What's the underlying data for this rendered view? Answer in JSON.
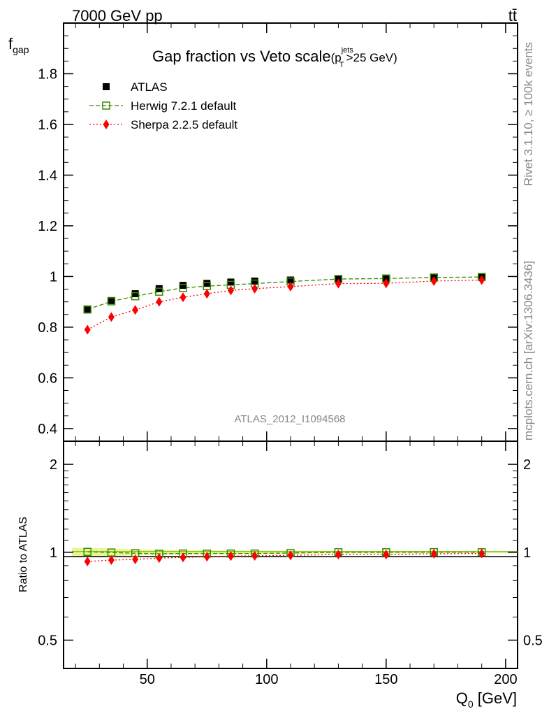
{
  "header": {
    "energy_label": "7000 GeV pp",
    "process_label": "tt̄"
  },
  "side_labels": {
    "rivet": "Rivet 3.1.10, ≥ 100k events",
    "mcplots": "mcplots.cern.ch [arXiv:1306.3436]"
  },
  "watermark": "ATLAS_2012_I1094568",
  "colors": {
    "atlas": "#000000",
    "herwig": "#3a8a00",
    "sherpa": "#ff0000",
    "band": "#e6f58c"
  },
  "chart_data": [
    {
      "type": "scatter",
      "panel": "main",
      "title_main": "Gap fraction vs Veto scale",
      "title_sub": "(p",
      "title_sup": "jets",
      "title_sub2": "T",
      "title_tail": ">25 GeV)",
      "ylabel": "f",
      "ylabel_sub": "gap",
      "xlim": [
        15,
        205
      ],
      "ylim": [
        0.35,
        2.0
      ],
      "y_ticks": [
        0.4,
        0.6,
        0.8,
        1.0,
        1.2,
        1.4,
        1.6,
        1.8
      ],
      "y_tick_labels": [
        "0.4",
        "0.6",
        "0.8",
        "1",
        "1.2",
        "1.4",
        "1.6",
        "1.8"
      ],
      "legend_position": "top-left",
      "x": [
        25,
        35,
        45,
        55,
        65,
        75,
        85,
        95,
        110,
        130,
        150,
        170,
        190
      ],
      "series": [
        {
          "name": "ATLAS",
          "marker": "filled-square",
          "values": [
            0.868,
            0.905,
            0.932,
            0.952,
            0.965,
            0.973,
            0.978,
            0.982,
            0.986,
            0.991,
            0.993,
            0.995,
            0.998
          ]
        },
        {
          "name": "Herwig 7.2.1 default",
          "marker": "open-square",
          "values": [
            0.87,
            0.902,
            0.922,
            0.94,
            0.955,
            0.962,
            0.967,
            0.972,
            0.98,
            0.99,
            0.992,
            0.996,
            0.998
          ]
        },
        {
          "name": "Sherpa 2.2.5 default",
          "marker": "filled-diamond",
          "values": [
            0.79,
            0.84,
            0.868,
            0.9,
            0.918,
            0.932,
            0.945,
            0.952,
            0.96,
            0.972,
            0.973,
            0.982,
            0.986
          ]
        }
      ]
    },
    {
      "type": "scatter",
      "panel": "ratio",
      "ylabel": "Ratio to ATLAS",
      "xlabel": "Q",
      "xlabel_sub": "0",
      "xlabel_tail": " [GeV]",
      "xlim": [
        15,
        205
      ],
      "x_ticks": [
        50,
        100,
        150,
        200
      ],
      "x_tick_labels": [
        "50",
        "100",
        "150",
        "200"
      ],
      "y_scale": "log",
      "ylim": [
        0.4,
        2.4
      ],
      "y_ticks": [
        0.5,
        1,
        2
      ],
      "y_tick_labels": [
        "0.5",
        "1",
        "2"
      ],
      "x": [
        25,
        35,
        45,
        55,
        65,
        75,
        85,
        95,
        110,
        130,
        150,
        170,
        190
      ],
      "band": [
        0.035,
        0.03,
        0.025,
        0.02,
        0.018,
        0.016,
        0.015,
        0.014,
        0.012,
        0.01,
        0.01,
        0.009,
        0.008
      ],
      "series": [
        {
          "name": "Herwig 7.2.1 default",
          "marker": "open-square",
          "values": [
            1.003,
            0.998,
            0.992,
            0.988,
            0.99,
            0.989,
            0.99,
            0.99,
            0.994,
            1.0,
            1.0,
            1.001,
            1.0
          ]
        },
        {
          "name": "Sherpa 2.2.5 default",
          "marker": "filled-diamond",
          "values": [
            0.93,
            0.94,
            0.945,
            0.955,
            0.96,
            0.965,
            0.97,
            0.972,
            0.976,
            0.982,
            0.982,
            0.988,
            0.99
          ]
        }
      ]
    }
  ]
}
